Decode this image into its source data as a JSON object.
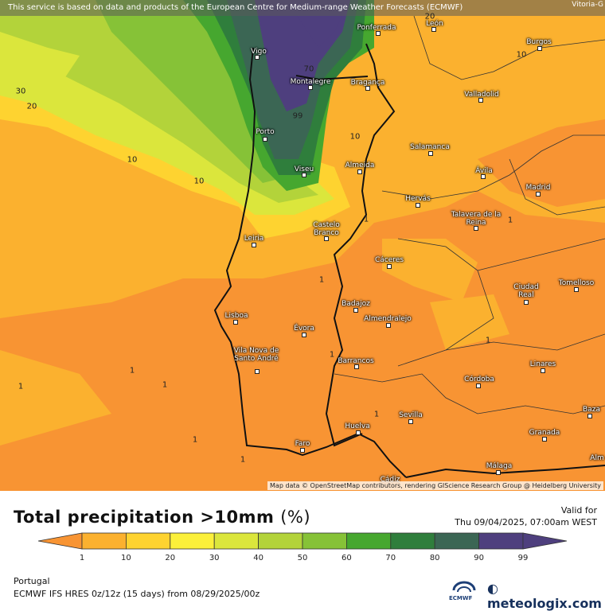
{
  "header": {
    "notice": "This service is based on data and products of the European Centre for Medium-range Weather Forecasts (ECMWF)",
    "corner_city": "Vitoria-G"
  },
  "attribution": "Map data © OpenStreetMap contributors, rendering GIScience Research Group @ Heidelberg University",
  "cities": [
    {
      "name": "Ponferrada"
    },
    {
      "name": "León"
    },
    {
      "name": "Burgos"
    },
    {
      "name": "Vigo"
    },
    {
      "name": "Montalegre"
    },
    {
      "name": "Bragança"
    },
    {
      "name": "Valladolid"
    },
    {
      "name": "Porto"
    },
    {
      "name": "Salamanca"
    },
    {
      "name": "Viseu"
    },
    {
      "name": "Almeida"
    },
    {
      "name": "Ávila"
    },
    {
      "name": "Madrid"
    },
    {
      "name": "Hervás"
    },
    {
      "name": "Talavera de la Reina"
    },
    {
      "name": "Castelo Branco"
    },
    {
      "name": "Leiria"
    },
    {
      "name": "Cáceres"
    },
    {
      "name": "Ciudad Real"
    },
    {
      "name": "Tomelloso"
    },
    {
      "name": "Badajoz"
    },
    {
      "name": "Lisboa"
    },
    {
      "name": "Almendralejo"
    },
    {
      "name": "Évora"
    },
    {
      "name": "Vila Nova de Santo André"
    },
    {
      "name": "Barrancos"
    },
    {
      "name": "Linares"
    },
    {
      "name": "Córdoba"
    },
    {
      "name": "Sevilla"
    },
    {
      "name": "Baza"
    },
    {
      "name": "Huelva"
    },
    {
      "name": "Granada"
    },
    {
      "name": "Faro"
    },
    {
      "name": "Málaga"
    },
    {
      "name": "Alm"
    },
    {
      "name": "Cádiz"
    }
  ],
  "contour_labels": [
    "20",
    "70",
    "10",
    "99",
    "30",
    "20",
    "10",
    "10",
    "10",
    "1",
    "1",
    "1",
    "1",
    "1",
    "1",
    "1",
    "1",
    "1",
    "1",
    "1"
  ],
  "legend": {
    "title": "Total precipitation >10mm",
    "unit": "(%)",
    "valid_label": "Valid for",
    "valid_time": "Thu 09/04/2025, 07:00am WEST",
    "ticks": [
      "1",
      "10",
      "20",
      "30",
      "40",
      "50",
      "60",
      "70",
      "80",
      "90",
      "99"
    ],
    "colors": [
      "#f89433",
      "#fbb12f",
      "#fed330",
      "#fbf03a",
      "#dbe63c",
      "#b3d33a",
      "#86c237",
      "#46a72f",
      "#2f7e3c",
      "#3b6654",
      "#4e3f7e"
    ]
  },
  "footer": {
    "region": "Portugal",
    "model": "ECMWF IFS HRES 0z/12z (15 days) from  08/29/2025/00z",
    "ecmwf": "ECMWF",
    "brand": "meteologix.com"
  }
}
